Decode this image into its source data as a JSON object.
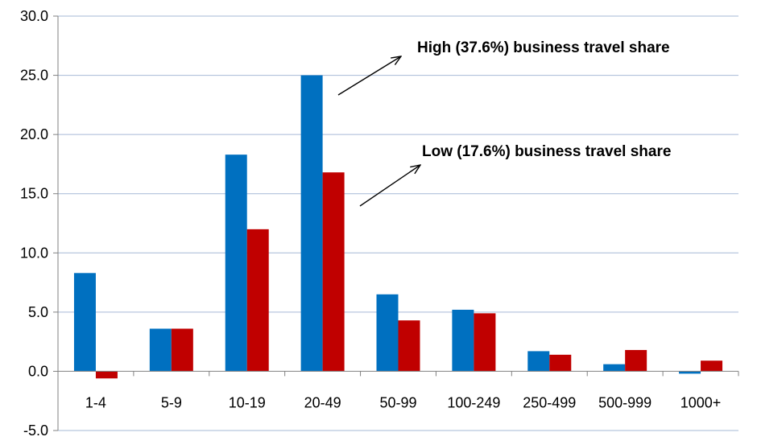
{
  "chart_data": {
    "type": "bar",
    "title": "",
    "xlabel": "",
    "ylabel": "",
    "categories": [
      "1-4",
      "5-9",
      "10-19",
      "20-49",
      "50-99",
      "100-249",
      "250-499",
      "500-999",
      "1000+"
    ],
    "series": [
      {
        "values": [
          8.3,
          3.6,
          18.3,
          25.0,
          6.5,
          5.2,
          1.7,
          0.6,
          -0.2
        ],
        "color": "#0070C0"
      },
      {
        "values": [
          -0.6,
          3.6,
          12.0,
          16.8,
          4.3,
          4.9,
          1.4,
          1.8,
          0.9
        ],
        "color": "#C00000"
      }
    ],
    "ylim": [
      -5,
      30
    ],
    "yticks": [
      "-5.0",
      "0.0",
      "5.0",
      "10.0",
      "15.0",
      "20.0",
      "25.0",
      "30.0"
    ],
    "grid": true,
    "legend": "none",
    "annotations": [
      {
        "text": "High (37.6%) business travel share",
        "points_to": "20-49 blue bar"
      },
      {
        "text": "Low (17.6%) business travel share",
        "points_to": "20-49 red bar"
      }
    ]
  }
}
